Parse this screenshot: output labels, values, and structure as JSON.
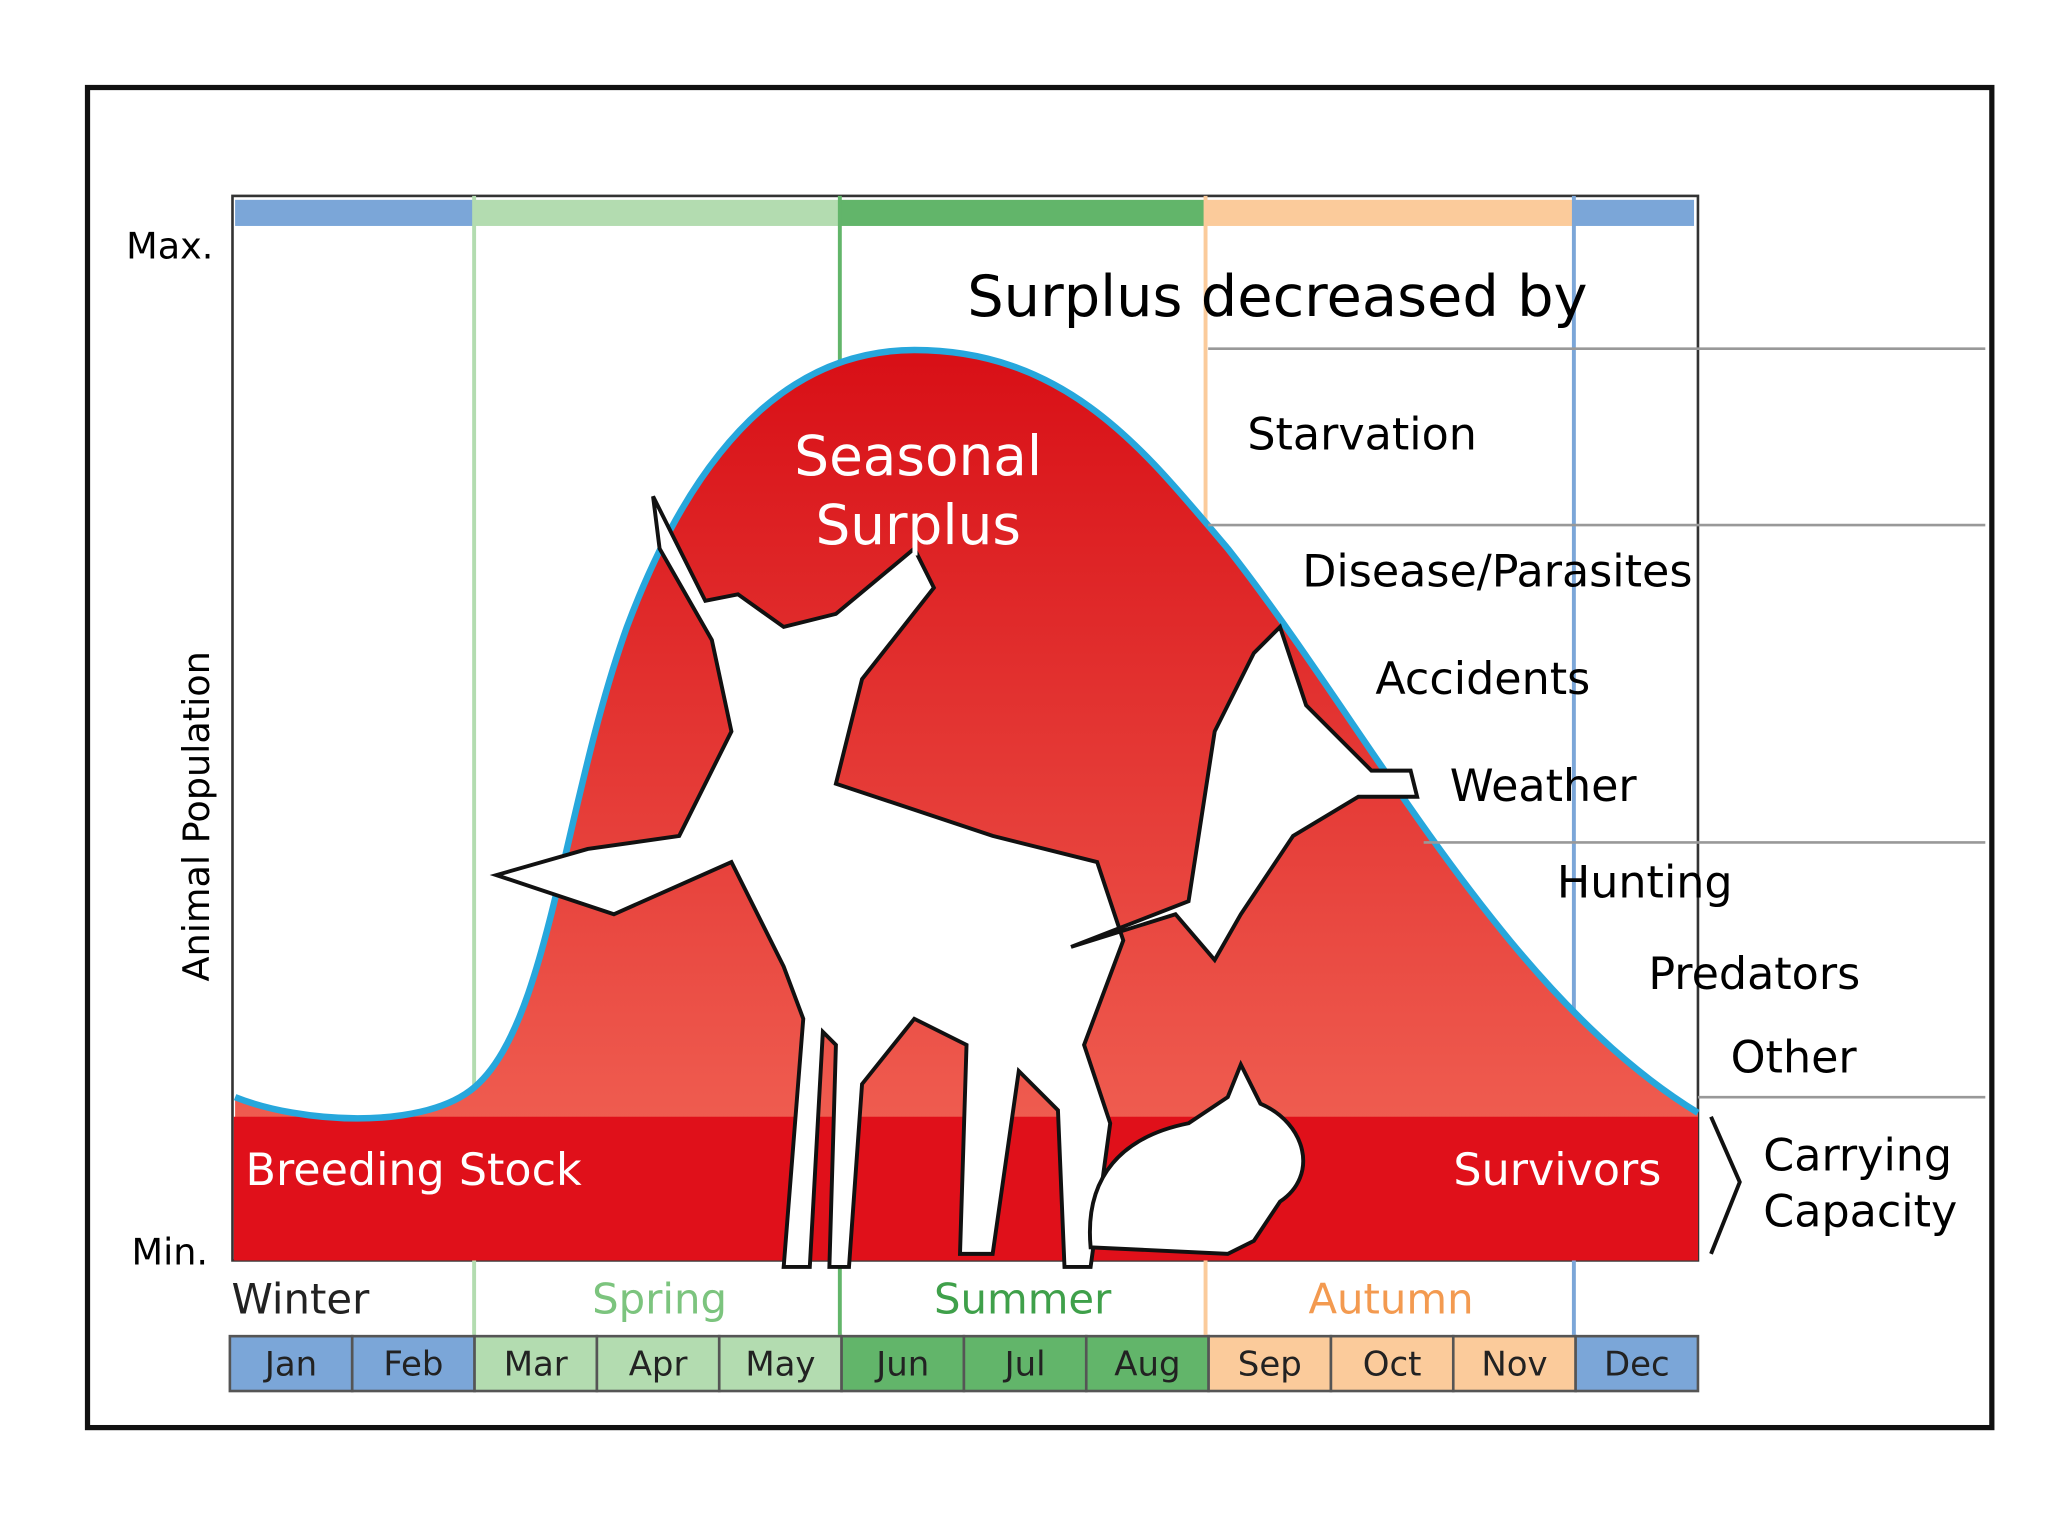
{
  "y_axis": {
    "label": "Animal Population",
    "max": "Max.",
    "min": "Min."
  },
  "title": "Surplus decreased by",
  "causes": [
    "Starvation",
    "Disease/Parasites",
    "Accidents",
    "Weather",
    "Hunting",
    "Predators",
    "Other"
  ],
  "seasonal_surplus": [
    "Seasonal",
    "Surplus"
  ],
  "breeding_stock": "Breeding Stock",
  "survivors": "Survivors",
  "carrying_capacity": [
    "Carrying",
    "Capacity"
  ],
  "seasons": [
    "Winter",
    "Spring",
    "Summer",
    "Autumn"
  ],
  "months": [
    "Jan",
    "Feb",
    "Mar",
    "Apr",
    "May",
    "Jun",
    "Jul",
    "Aug",
    "Sep",
    "Oct",
    "Nov",
    "Dec"
  ]
}
